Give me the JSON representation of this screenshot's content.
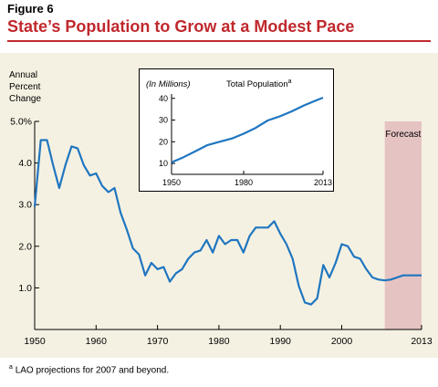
{
  "figure": {
    "label": "Figure 6",
    "title": "State’s Population to Grow at a Modest Pace",
    "footnote_marker": "a",
    "footnote": "LAO projections for 2007 and beyond."
  },
  "colors": {
    "title": "#c0282d",
    "line": "#1f76c0",
    "panel": "#f5f1e2",
    "forecast": "#e6c3c3"
  },
  "chart_data": [
    {
      "type": "line",
      "ylabel": [
        "Annual",
        "Percent",
        "Change"
      ],
      "ylim": [
        0,
        5
      ],
      "y_ticks": [
        1,
        2,
        3,
        4,
        5
      ],
      "y_tick_labels": [
        "1.0",
        "2.0",
        "3.0",
        "4.0",
        "5.0%"
      ],
      "xlim": [
        1950,
        2013
      ],
      "x_ticks": [
        1950,
        1960,
        1970,
        1980,
        1990,
        2000,
        2013
      ],
      "x_tick_labels": [
        "1950",
        "1960",
        "1970",
        "1980",
        "1990",
        "2000",
        "2013"
      ],
      "forecast_label": "Forecast",
      "forecast_range": [
        2007,
        2013
      ],
      "grid": false,
      "legend": "none",
      "x": [
        1950,
        1951,
        1952,
        1953,
        1954,
        1955,
        1956,
        1957,
        1958,
        1959,
        1960,
        1961,
        1962,
        1963,
        1964,
        1965,
        1966,
        1967,
        1968,
        1969,
        1970,
        1971,
        1972,
        1973,
        1974,
        1975,
        1976,
        1977,
        1978,
        1979,
        1980,
        1981,
        1982,
        1983,
        1984,
        1985,
        1986,
        1987,
        1988,
        1989,
        1990,
        1991,
        1992,
        1993,
        1994,
        1995,
        1996,
        1997,
        1998,
        1999,
        2000,
        2001,
        2002,
        2003,
        2004,
        2005,
        2006,
        2007,
        2008,
        2009,
        2010,
        2011,
        2012,
        2013
      ],
      "y": [
        2.95,
        4.55,
        4.55,
        3.95,
        3.4,
        3.95,
        4.4,
        4.35,
        3.95,
        3.7,
        3.75,
        3.45,
        3.3,
        3.4,
        2.8,
        2.4,
        1.95,
        1.8,
        1.3,
        1.6,
        1.45,
        1.5,
        1.15,
        1.35,
        1.45,
        1.7,
        1.85,
        1.9,
        2.15,
        1.85,
        2.25,
        2.05,
        2.15,
        2.15,
        1.85,
        2.25,
        2.45,
        2.45,
        2.45,
        2.6,
        2.3,
        2.05,
        1.7,
        1.05,
        0.65,
        0.6,
        0.75,
        1.55,
        1.25,
        1.6,
        2.05,
        2.0,
        1.75,
        1.7,
        1.45,
        1.25,
        1.2,
        1.18,
        1.2,
        1.25,
        1.3,
        1.3,
        1.3,
        1.3
      ]
    },
    {
      "type": "line",
      "title": "Total Population",
      "title_marker": "a",
      "unit_label": "(In Millions)",
      "ylim": [
        5,
        42
      ],
      "y_ticks": [
        10,
        20,
        30,
        40
      ],
      "y_tick_labels": [
        "10",
        "20",
        "30",
        "40"
      ],
      "xlim": [
        1950,
        2013
      ],
      "x_ticks": [
        1950,
        1980,
        2013
      ],
      "x_tick_labels": [
        "1950",
        "1980",
        "2013"
      ],
      "grid": false,
      "legend": "none",
      "x": [
        1950,
        1955,
        1960,
        1965,
        1970,
        1975,
        1980,
        1985,
        1990,
        1995,
        2000,
        2005,
        2010,
        2013
      ],
      "y": [
        10.5,
        12.9,
        15.7,
        18.5,
        20.0,
        21.5,
        23.7,
        26.4,
        29.8,
        31.7,
        34.0,
        36.7,
        39.0,
        40.3
      ]
    }
  ]
}
